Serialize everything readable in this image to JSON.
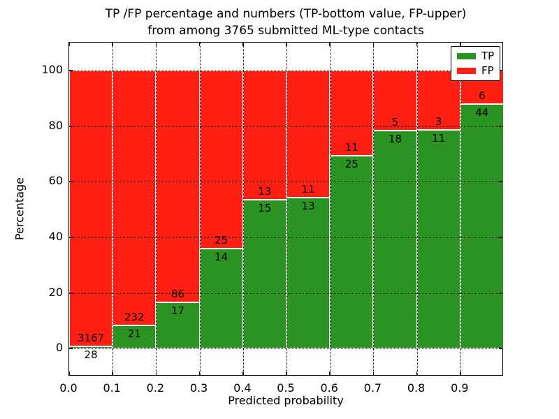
{
  "figure": {
    "title_line1": "TP /FP percentage and numbers (TP-bottom value, FP-upper)",
    "title_line2": "from among 3765 submitted ML-type contacts"
  },
  "chart_data": {
    "type": "bar",
    "stacked": true,
    "normalized": "each bin stacked to 100 percent",
    "title": "TP /FP percentage and numbers (TP-bottom value, FP-upper)\nfrom among 3765 submitted ML-type contacts",
    "xlabel": "Predicted probability",
    "ylabel": "Percentage",
    "xlim": [
      0.0,
      1.0
    ],
    "ylim": [
      -10,
      110
    ],
    "xticks": [
      "0.0",
      "0.1",
      "0.2",
      "0.3",
      "0.4",
      "0.5",
      "0.6",
      "0.7",
      "0.8",
      "0.9"
    ],
    "yticks": [
      0,
      20,
      40,
      60,
      80,
      100
    ],
    "grid": "dotted black, on",
    "bin_width": 0.1,
    "bin_starts": [
      0.0,
      0.1,
      0.2,
      0.3,
      0.4,
      0.5,
      0.6,
      0.7,
      0.8,
      0.9
    ],
    "series": [
      {
        "name": "TP",
        "color": "#2a9322",
        "counts": [
          28,
          21,
          17,
          14,
          15,
          13,
          25,
          18,
          11,
          44
        ]
      },
      {
        "name": "FP",
        "color": "#ff1e12",
        "counts": [
          3167,
          232,
          86,
          25,
          13,
          11,
          11,
          5,
          3,
          6
        ]
      }
    ],
    "legend": {
      "position": "upper right",
      "entries": [
        "TP",
        "FP"
      ]
    }
  },
  "colors": {
    "tp_green": "#2a9322",
    "fp_red": "#ff1e12",
    "bar_edge": "#ffffff",
    "grid": "#000000",
    "text": "#000000",
    "background": "#ffffff"
  }
}
